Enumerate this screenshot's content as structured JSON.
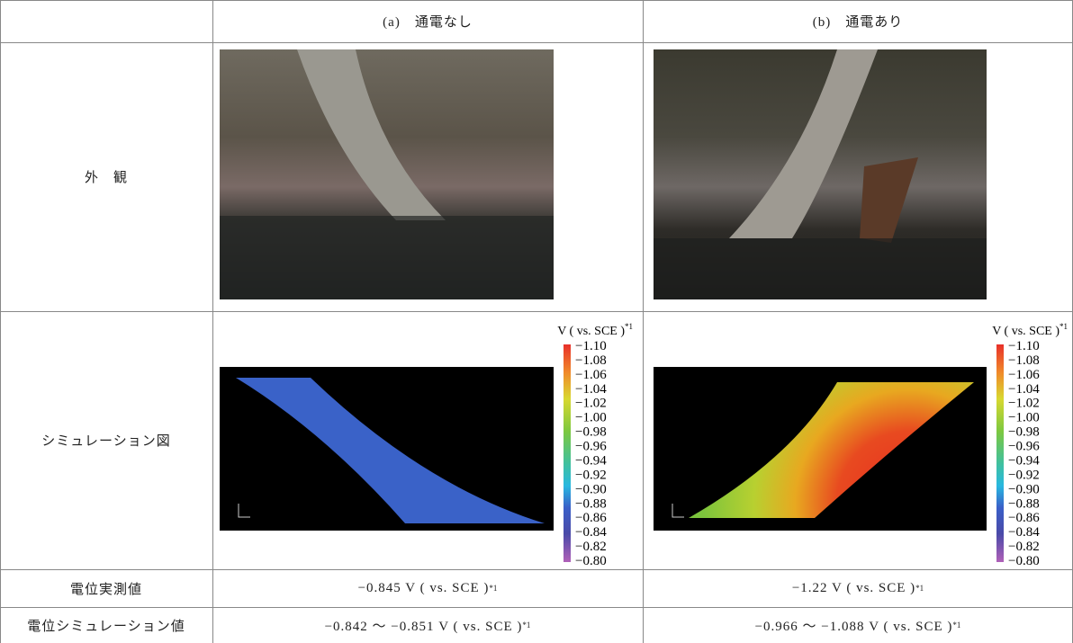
{
  "header": {
    "a": "(a)　通電なし",
    "b": "(b)　通電あり"
  },
  "rows": {
    "appearance": {
      "label": "外　観"
    },
    "simulation": {
      "label": "シミュレーション図",
      "unit": "V ( vs. SCE )",
      "unit_note": "*1",
      "scale": [
        "−1.10",
        "−1.08",
        "−1.06",
        "−1.04",
        "−1.02",
        "−1.00",
        "−0.98",
        "−0.96",
        "−0.94",
        "−0.92",
        "−0.90",
        "−0.88",
        "−0.86",
        "−0.84",
        "−0.82",
        "−0.80"
      ]
    },
    "measured": {
      "label": "電位実測値",
      "a": "−0.845 V ( vs. SCE )",
      "a_note": "*1",
      "b": "−1.22 V ( vs. SCE )",
      "b_note": "*1"
    },
    "simulated": {
      "label": "電位シミュレーション値",
      "a": "−0.842 〜 −0.851 V ( vs. SCE )",
      "a_note": "*1",
      "b": "−0.966 〜 −1.088 V ( vs. SCE )",
      "b_note": "*1"
    }
  }
}
